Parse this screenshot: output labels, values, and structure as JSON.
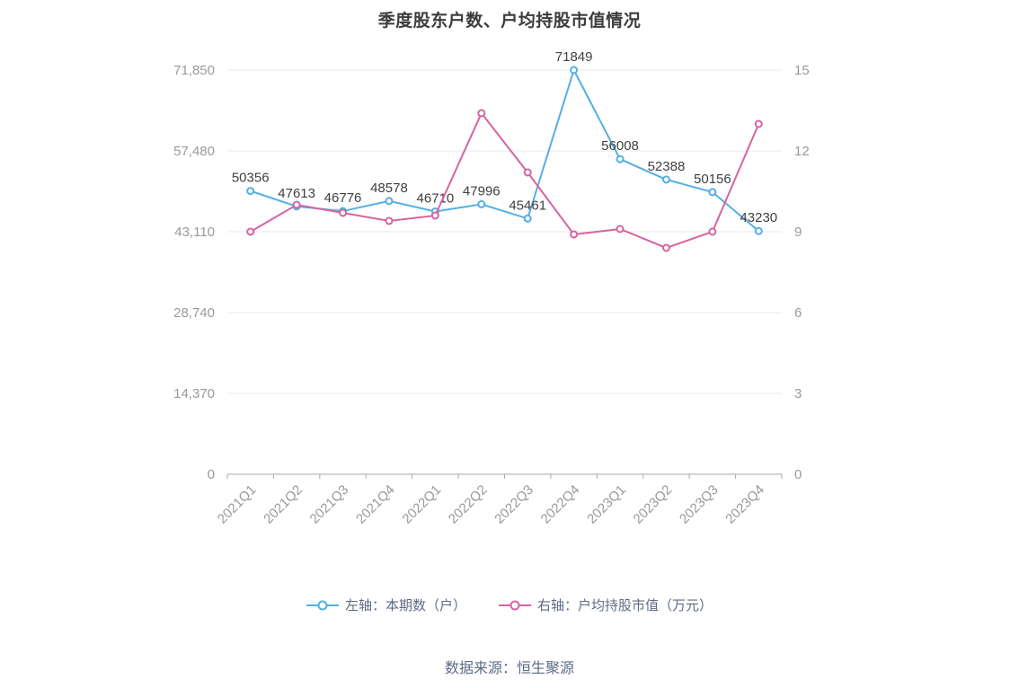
{
  "title": "季度股东户数、户均持股市值情况",
  "footer": "数据来源：恒生聚源",
  "colors": {
    "blue": "#54afe4",
    "pink": "#d8639f",
    "grid": "#e8e8e8",
    "axis_line": "#aaaaaa",
    "axis_label": "#999999",
    "data_label": "#3f3f3f",
    "legend_text": "#5e6b85",
    "title_text": "#3c3c3c"
  },
  "chart_data": {
    "type": "line",
    "title": "季度股东户数、户均持股市值情况",
    "categories": [
      "2021Q1",
      "2021Q2",
      "2021Q3",
      "2021Q4",
      "2022Q1",
      "2022Q2",
      "2022Q3",
      "2022Q4",
      "2023Q1",
      "2023Q2",
      "2023Q3",
      "2023Q4"
    ],
    "series": [
      {
        "name": "左轴：本期数（户）",
        "axis": "left",
        "color": "#54afe4",
        "values": [
          50356,
          47613,
          46776,
          48578,
          46710,
          47996,
          45461,
          71849,
          56008,
          52388,
          50156,
          43230
        ],
        "data_labels": true
      },
      {
        "name": "右轴：户均持股市值（万元）",
        "axis": "right",
        "color": "#d8639f",
        "values": [
          9.0,
          10.0,
          9.7,
          9.4,
          9.6,
          13.4,
          11.2,
          8.9,
          9.1,
          8.4,
          9.0,
          13.0
        ],
        "data_labels": false
      }
    ],
    "left_axis": {
      "max": 71850,
      "ticks": [
        0,
        14370,
        28740,
        43110,
        57480,
        71850
      ],
      "labels": [
        "0",
        "14,370",
        "28,740",
        "43,110",
        "57,480",
        "71,850"
      ]
    },
    "right_axis": {
      "max": 15,
      "ticks": [
        0,
        3,
        6,
        9,
        12,
        15
      ],
      "labels": [
        "0",
        "3",
        "6",
        "9",
        "12",
        "15"
      ]
    },
    "legend_position": "bottom",
    "grid": true
  }
}
